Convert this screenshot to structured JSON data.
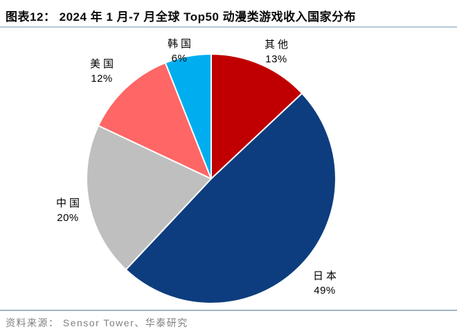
{
  "figure": {
    "title": "图表12：  2024 年 1 月-7 月全球 Top50 动漫类游戏收入国家分布",
    "source": "资料来源： Sensor Tower、华泰研究"
  },
  "colors": {
    "title_rule": "#B6C8DB",
    "bottom_rule": "#9FB4C7",
    "source_text": "#808080",
    "label_text": "#000000",
    "slice_border": "#FFFFFF"
  },
  "chart_data": {
    "type": "pie",
    "title": "2024 年 1 月-7 月全球 Top50 动漫类游戏收入国家分布",
    "categories": [
      "其他",
      "日本",
      "中国",
      "美国",
      "韩国"
    ],
    "keys": [
      "others",
      "japan",
      "china",
      "usa",
      "korea"
    ],
    "values": [
      13,
      49,
      20,
      12,
      6
    ],
    "unit": "%",
    "colors": [
      "#C00000",
      "#0D3D7E",
      "#BFBFBF",
      "#FF6666",
      "#00AEEF"
    ],
    "start_angle_deg": 0,
    "direction": "clockwise",
    "legend": "none",
    "labels_outside": true,
    "data_labels": [
      "13%",
      "49%",
      "20%",
      "12%",
      "6%"
    ]
  }
}
